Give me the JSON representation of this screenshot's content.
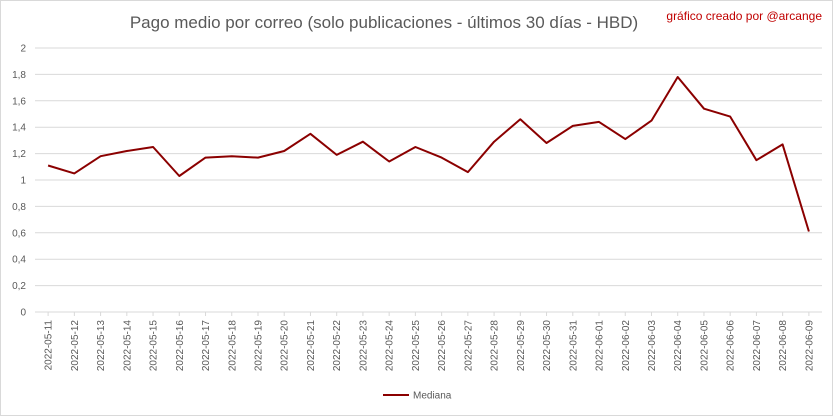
{
  "chart_data": {
    "type": "line",
    "title": "Pago medio por correo (solo publicaciones - últimos 30 días - HBD)",
    "annotation": "gráfico creado por @arcange",
    "xlabel": "",
    "ylabel": "",
    "ylim": [
      0,
      2
    ],
    "yticks": [
      "0",
      "0,2",
      "0,4",
      "0,6",
      "0,8",
      "1",
      "1,2",
      "1,4",
      "1,6",
      "1,8",
      "2"
    ],
    "grid": true,
    "legend_position": "bottom",
    "colors": {
      "series": "#8b0000",
      "grid": "#d9d9d9",
      "text": "#595959",
      "credit": "#c00000"
    },
    "categories": [
      "2022-05-11",
      "2022-05-12",
      "2022-05-13",
      "2022-05-14",
      "2022-05-15",
      "2022-05-16",
      "2022-05-17",
      "2022-05-18",
      "2022-05-19",
      "2022-05-20",
      "2022-05-21",
      "2022-05-22",
      "2022-05-23",
      "2022-05-24",
      "2022-05-25",
      "2022-05-26",
      "2022-05-27",
      "2022-05-28",
      "2022-05-29",
      "2022-05-30",
      "2022-05-31",
      "2022-06-01",
      "2022-06-02",
      "2022-06-03",
      "2022-06-04",
      "2022-06-05",
      "2022-06-06",
      "2022-06-07",
      "2022-06-08",
      "2022-06-09"
    ],
    "series": [
      {
        "name": "Mediana",
        "values": [
          1.11,
          1.05,
          1.18,
          1.22,
          1.25,
          1.03,
          1.17,
          1.18,
          1.17,
          1.22,
          1.35,
          1.19,
          1.29,
          1.14,
          1.25,
          1.17,
          1.06,
          1.29,
          1.46,
          1.28,
          1.41,
          1.44,
          1.31,
          1.45,
          1.78,
          1.54,
          1.48,
          1.15,
          1.27,
          0.61
        ]
      }
    ]
  }
}
